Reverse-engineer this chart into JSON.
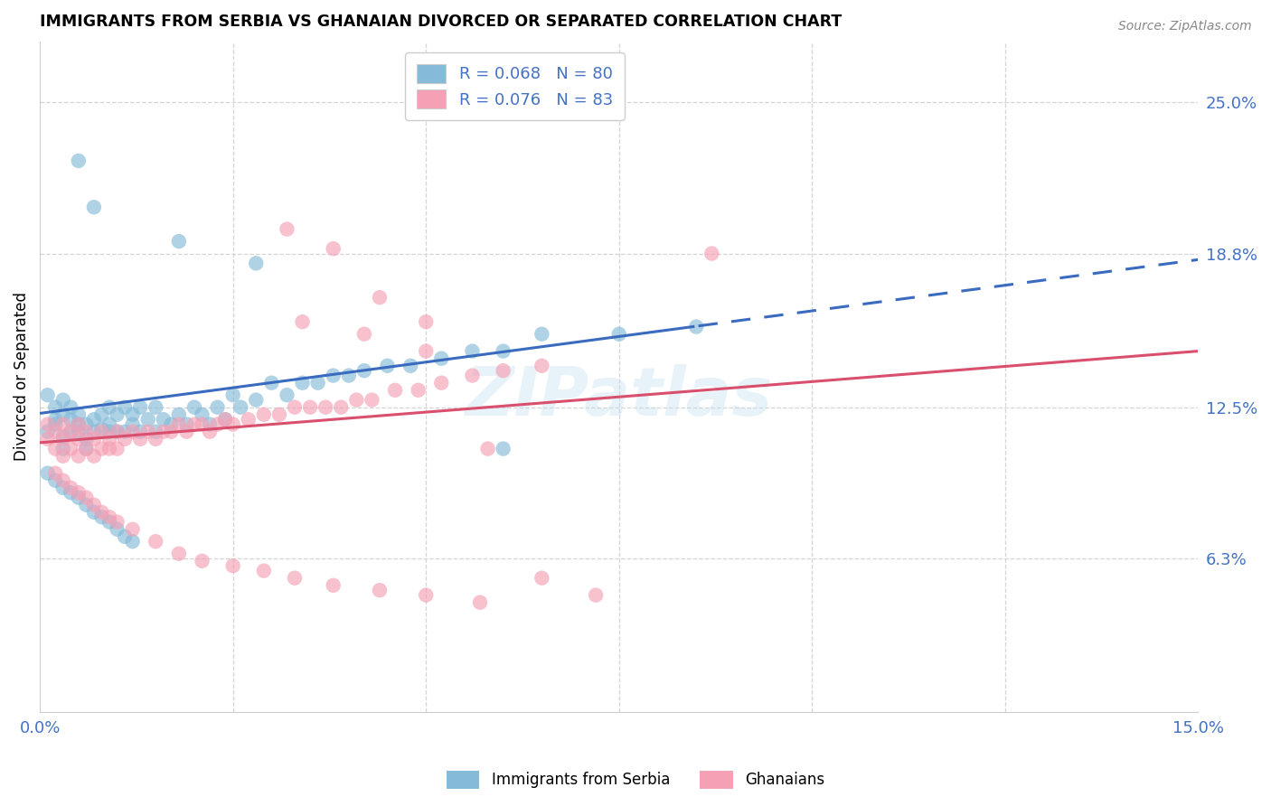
{
  "title": "IMMIGRANTS FROM SERBIA VS GHANAIAN DIVORCED OR SEPARATED CORRELATION CHART",
  "source": "Source: ZipAtlas.com",
  "ylabel": "Divorced or Separated",
  "x_min": 0.0,
  "x_max": 0.15,
  "y_min": 0.0,
  "y_max": 0.275,
  "y_ticks_right": [
    0.063,
    0.125,
    0.188,
    0.25
  ],
  "y_tick_labels_right": [
    "6.3%",
    "12.5%",
    "18.8%",
    "25.0%"
  ],
  "x_ticks": [
    0.0,
    0.05,
    0.1,
    0.15
  ],
  "x_tick_labels": [
    "0.0%",
    "",
    "",
    "15.0%"
  ],
  "serbia_R": 0.068,
  "serbia_N": 80,
  "ghana_R": 0.076,
  "ghana_N": 83,
  "serbia_color": "#85bbd8",
  "ghana_color": "#f5a0b5",
  "serbia_line_color": "#3a6bbf",
  "ghana_line_color": "#d94f6e",
  "serbia_line_intercept": 0.1225,
  "serbia_line_slope": 0.42,
  "ghana_line_intercept": 0.1105,
  "ghana_line_slope": 0.25,
  "serbia_cutoff": 0.085,
  "watermark": "ZIPatlas",
  "legend_label_1": "Immigrants from Serbia",
  "legend_label_2": "Ghanaians",
  "serbia_x": [
    0.001,
    0.001,
    0.002,
    0.002,
    0.002,
    0.003,
    0.003,
    0.003,
    0.003,
    0.004,
    0.004,
    0.004,
    0.005,
    0.005,
    0.005,
    0.006,
    0.006,
    0.006,
    0.007,
    0.007,
    0.008,
    0.008,
    0.009,
    0.009,
    0.009,
    0.01,
    0.01,
    0.011,
    0.011,
    0.012,
    0.012,
    0.013,
    0.013,
    0.014,
    0.015,
    0.015,
    0.016,
    0.017,
    0.018,
    0.019,
    0.02,
    0.021,
    0.022,
    0.023,
    0.024,
    0.025,
    0.026,
    0.028,
    0.03,
    0.032,
    0.034,
    0.036,
    0.038,
    0.04,
    0.042,
    0.045,
    0.048,
    0.052,
    0.056,
    0.06,
    0.005,
    0.007,
    0.018,
    0.028,
    0.001,
    0.002,
    0.003,
    0.004,
    0.005,
    0.006,
    0.007,
    0.008,
    0.009,
    0.01,
    0.011,
    0.012,
    0.065,
    0.075,
    0.085,
    0.06
  ],
  "serbia_y": [
    0.115,
    0.13,
    0.12,
    0.125,
    0.118,
    0.108,
    0.113,
    0.122,
    0.128,
    0.115,
    0.12,
    0.125,
    0.115,
    0.122,
    0.118,
    0.108,
    0.112,
    0.118,
    0.12,
    0.115,
    0.116,
    0.122,
    0.115,
    0.118,
    0.125,
    0.115,
    0.122,
    0.115,
    0.125,
    0.118,
    0.122,
    0.115,
    0.125,
    0.12,
    0.115,
    0.125,
    0.12,
    0.118,
    0.122,
    0.118,
    0.125,
    0.122,
    0.118,
    0.125,
    0.12,
    0.13,
    0.125,
    0.128,
    0.135,
    0.13,
    0.135,
    0.135,
    0.138,
    0.138,
    0.14,
    0.142,
    0.142,
    0.145,
    0.148,
    0.148,
    0.226,
    0.207,
    0.193,
    0.184,
    0.098,
    0.095,
    0.092,
    0.09,
    0.088,
    0.085,
    0.082,
    0.08,
    0.078,
    0.075,
    0.072,
    0.07,
    0.155,
    0.155,
    0.158,
    0.108
  ],
  "ghana_x": [
    0.001,
    0.001,
    0.002,
    0.002,
    0.003,
    0.003,
    0.003,
    0.004,
    0.004,
    0.005,
    0.005,
    0.005,
    0.006,
    0.006,
    0.007,
    0.007,
    0.008,
    0.008,
    0.009,
    0.009,
    0.01,
    0.01,
    0.011,
    0.012,
    0.013,
    0.014,
    0.015,
    0.016,
    0.017,
    0.018,
    0.019,
    0.02,
    0.021,
    0.022,
    0.023,
    0.024,
    0.025,
    0.027,
    0.029,
    0.031,
    0.033,
    0.035,
    0.037,
    0.039,
    0.041,
    0.043,
    0.046,
    0.049,
    0.052,
    0.056,
    0.06,
    0.065,
    0.032,
    0.038,
    0.044,
    0.05,
    0.002,
    0.003,
    0.004,
    0.005,
    0.006,
    0.007,
    0.008,
    0.009,
    0.01,
    0.012,
    0.015,
    0.018,
    0.021,
    0.025,
    0.029,
    0.033,
    0.038,
    0.044,
    0.05,
    0.057,
    0.034,
    0.042,
    0.05,
    0.087,
    0.058,
    0.065,
    0.072
  ],
  "ghana_y": [
    0.112,
    0.118,
    0.108,
    0.115,
    0.105,
    0.112,
    0.118,
    0.108,
    0.115,
    0.105,
    0.112,
    0.118,
    0.108,
    0.115,
    0.105,
    0.112,
    0.108,
    0.115,
    0.108,
    0.112,
    0.108,
    0.115,
    0.112,
    0.115,
    0.112,
    0.115,
    0.112,
    0.115,
    0.115,
    0.118,
    0.115,
    0.118,
    0.118,
    0.115,
    0.118,
    0.12,
    0.118,
    0.12,
    0.122,
    0.122,
    0.125,
    0.125,
    0.125,
    0.125,
    0.128,
    0.128,
    0.132,
    0.132,
    0.135,
    0.138,
    0.14,
    0.142,
    0.198,
    0.19,
    0.17,
    0.16,
    0.098,
    0.095,
    0.092,
    0.09,
    0.088,
    0.085,
    0.082,
    0.08,
    0.078,
    0.075,
    0.07,
    0.065,
    0.062,
    0.06,
    0.058,
    0.055,
    0.052,
    0.05,
    0.048,
    0.045,
    0.16,
    0.155,
    0.148,
    0.188,
    0.108,
    0.055,
    0.048
  ]
}
